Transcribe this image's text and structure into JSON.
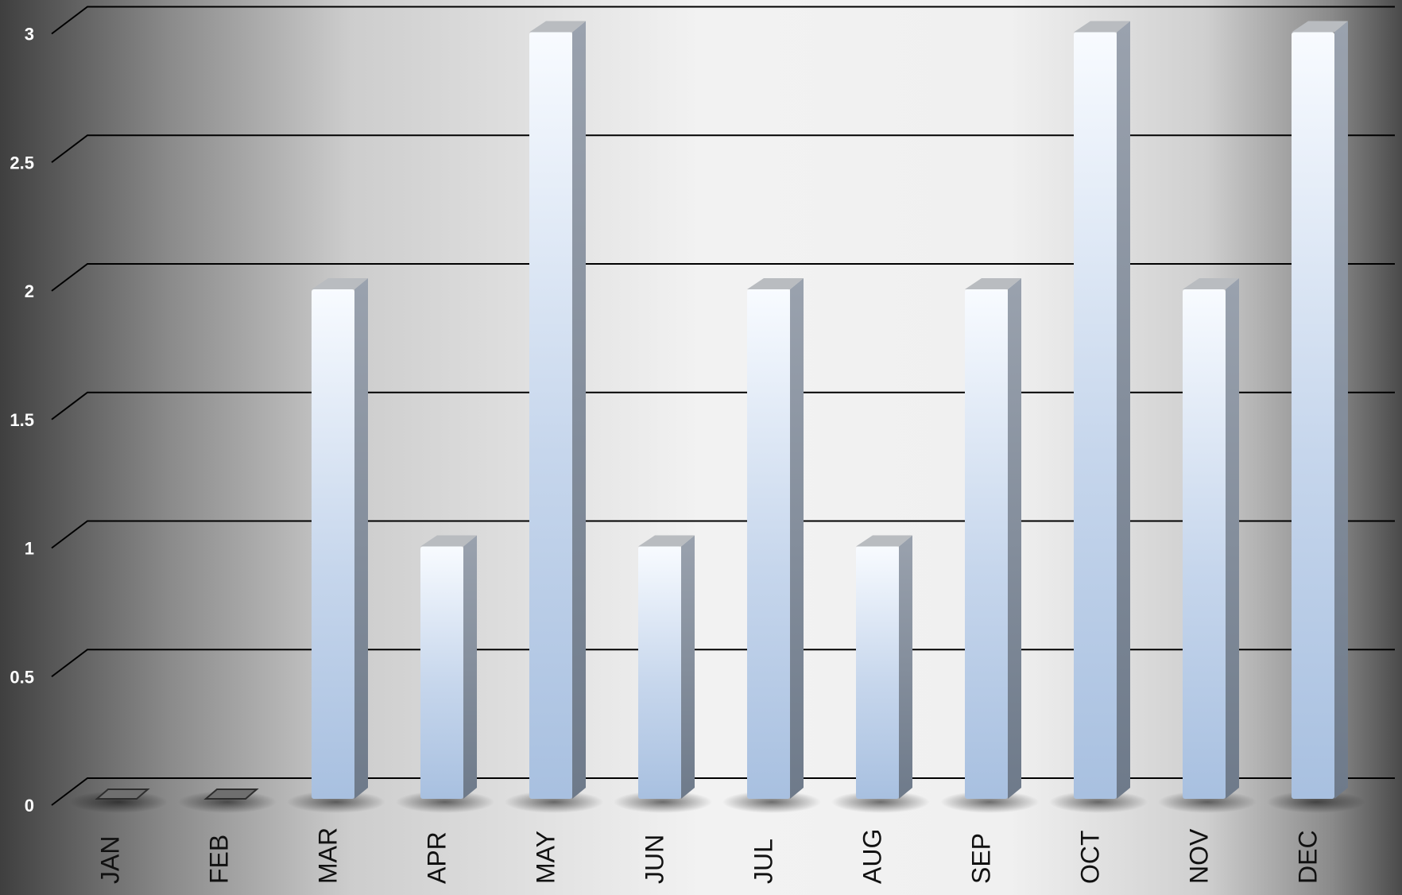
{
  "chart_data": {
    "type": "bar",
    "style": "3d-column",
    "categories": [
      "JAN",
      "FEB",
      "MAR",
      "APR",
      "MAY",
      "JUN",
      "JUL",
      "AUG",
      "SEP",
      "OCT",
      "NOV",
      "DEC"
    ],
    "values": [
      0,
      0,
      2,
      1,
      3,
      1,
      2,
      1,
      2,
      3,
      2,
      3
    ],
    "title": "",
    "xlabel": "",
    "ylabel": "",
    "ylim": [
      0,
      3
    ],
    "yticks": [
      "0",
      "0.5",
      "1",
      "1.5",
      "2",
      "2.5",
      "3"
    ],
    "grid": true,
    "legend": "none",
    "colors": {
      "bar_top": "#f7faff",
      "bar_bottom": "#a9c2e2",
      "bar_side": "#7d8795",
      "bar_cap": "#b9bcc0",
      "gridline": "#000000",
      "background_edge": "#444444",
      "background_center": "#f3f3f3",
      "tick_label": "#ffffff",
      "category_label": "#111111"
    }
  }
}
